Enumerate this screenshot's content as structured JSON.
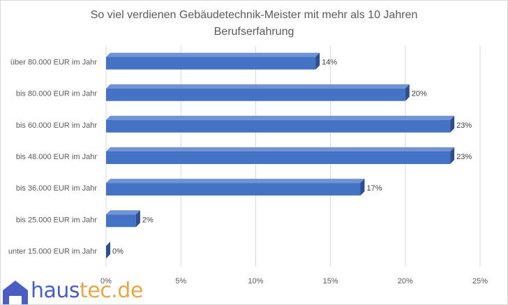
{
  "chart_data": {
    "type": "bar",
    "orientation": "horizontal",
    "title": "So viel verdienen Gebäudetechnik-Meister mit mehr als 10 Jahren Berufserfahrung",
    "title_lines": [
      "So viel verdienen Gebäudetechnik-Meister mit mehr als 10 Jahren",
      "Berufserfahrung"
    ],
    "categories": [
      "über 80.000 EUR im Jahr",
      "bis 80.000 EUR im Jahr",
      "bis 60.000 EUR im Jahr",
      "bis 48.000 EUR im Jahr",
      "bis 36.000 EUR im Jahr",
      "bis 25.000 EUR im Jahr",
      "unter 15.000 EUR im Jahr"
    ],
    "values": [
      14,
      20,
      23,
      23,
      17,
      2,
      0
    ],
    "data_labels": [
      "14%",
      "20%",
      "23%",
      "23%",
      "17%",
      "2%",
      "0%"
    ],
    "xlim": [
      0,
      25
    ],
    "ticks": [
      0,
      5,
      10,
      15,
      20,
      25
    ],
    "tick_labels": [
      "0%",
      "5%",
      "10%",
      "15%",
      "20%",
      "25%"
    ],
    "xlabel": "",
    "ylabel": "",
    "grid": true,
    "legend": "none",
    "bar_color": "#4472c4",
    "bar_side_color": "#2e4f8c",
    "bar_top_color": "#6f94d6"
  },
  "logo": {
    "part1": "haus",
    "part2": "tec.de",
    "color1": "#4a5dc2",
    "color2": "#e8a64a"
  }
}
